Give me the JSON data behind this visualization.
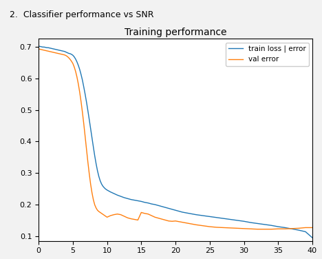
{
  "title": "Training performance",
  "page_header": "2.  Classifier performance vs SNR",
  "legend": [
    "train loss | error",
    "val error"
  ],
  "train_color": "#1f77b4",
  "val_color": "#ff7f0e",
  "xlim": [
    0,
    40
  ],
  "ylim": [
    0.085,
    0.725
  ],
  "yticks": [
    0.1,
    0.2,
    0.3,
    0.4,
    0.5,
    0.6,
    0.7
  ],
  "xticks": [
    0,
    5,
    10,
    15,
    20,
    25,
    30,
    35,
    40
  ],
  "page_bg": "#f0f0f0",
  "train_x": [
    0,
    0.2,
    0.4,
    0.6,
    0.8,
    1,
    1.2,
    1.4,
    1.6,
    1.8,
    2,
    2.2,
    2.4,
    2.6,
    2.8,
    3,
    3.2,
    3.4,
    3.6,
    3.8,
    4,
    4.2,
    4.4,
    4.6,
    4.8,
    5,
    5.2,
    5.4,
    5.6,
    5.8,
    6,
    6.2,
    6.4,
    6.6,
    6.8,
    7,
    7.2,
    7.4,
    7.6,
    7.8,
    8,
    8.2,
    8.4,
    8.6,
    8.8,
    9,
    9.2,
    9.4,
    9.6,
    9.8,
    10,
    10.5,
    11,
    11.5,
    12,
    12.5,
    13,
    13.5,
    14,
    14.5,
    15,
    15.5,
    16,
    16.5,
    17,
    17.5,
    18,
    18.5,
    19,
    19.5,
    20,
    21,
    22,
    23,
    24,
    25,
    26,
    27,
    28,
    29,
    30,
    31,
    32,
    33,
    34,
    35,
    36,
    37,
    38,
    39,
    40
  ],
  "train_y": [
    0.702,
    0.701,
    0.7,
    0.699,
    0.699,
    0.698,
    0.697,
    0.697,
    0.696,
    0.695,
    0.694,
    0.693,
    0.692,
    0.691,
    0.69,
    0.689,
    0.688,
    0.687,
    0.686,
    0.685,
    0.683,
    0.681,
    0.679,
    0.678,
    0.676,
    0.673,
    0.668,
    0.661,
    0.652,
    0.641,
    0.628,
    0.612,
    0.594,
    0.572,
    0.549,
    0.524,
    0.497,
    0.469,
    0.44,
    0.411,
    0.382,
    0.354,
    0.329,
    0.307,
    0.289,
    0.275,
    0.265,
    0.258,
    0.253,
    0.249,
    0.246,
    0.24,
    0.235,
    0.23,
    0.226,
    0.222,
    0.219,
    0.216,
    0.214,
    0.212,
    0.21,
    0.207,
    0.205,
    0.202,
    0.2,
    0.197,
    0.194,
    0.191,
    0.188,
    0.185,
    0.182,
    0.176,
    0.172,
    0.168,
    0.165,
    0.162,
    0.159,
    0.156,
    0.153,
    0.15,
    0.147,
    0.143,
    0.14,
    0.137,
    0.134,
    0.13,
    0.127,
    0.123,
    0.119,
    0.114,
    0.095
  ],
  "val_x": [
    0,
    0.2,
    0.4,
    0.6,
    0.8,
    1,
    1.2,
    1.4,
    1.6,
    1.8,
    2,
    2.2,
    2.4,
    2.6,
    2.8,
    3,
    3.2,
    3.4,
    3.6,
    3.8,
    4,
    4.2,
    4.4,
    4.6,
    4.8,
    5,
    5.2,
    5.4,
    5.6,
    5.8,
    6,
    6.2,
    6.4,
    6.6,
    6.8,
    7,
    7.2,
    7.4,
    7.6,
    7.8,
    8,
    8.2,
    8.4,
    8.6,
    8.8,
    9,
    9.2,
    9.4,
    9.6,
    9.8,
    10,
    10.5,
    11,
    11.5,
    12,
    12.5,
    13,
    13.5,
    14,
    14.5,
    15,
    15.5,
    16,
    16.5,
    17,
    17.5,
    18,
    18.5,
    19,
    19.5,
    20,
    21,
    22,
    23,
    24,
    25,
    26,
    27,
    28,
    29,
    30,
    31,
    32,
    33,
    34,
    35,
    36,
    37,
    38,
    39,
    40
  ],
  "val_y": [
    0.693,
    0.692,
    0.691,
    0.69,
    0.689,
    0.688,
    0.687,
    0.686,
    0.685,
    0.684,
    0.683,
    0.682,
    0.681,
    0.68,
    0.679,
    0.678,
    0.677,
    0.676,
    0.675,
    0.674,
    0.672,
    0.669,
    0.665,
    0.66,
    0.654,
    0.647,
    0.636,
    0.622,
    0.604,
    0.582,
    0.556,
    0.526,
    0.492,
    0.455,
    0.415,
    0.374,
    0.334,
    0.297,
    0.264,
    0.237,
    0.215,
    0.199,
    0.189,
    0.182,
    0.178,
    0.175,
    0.172,
    0.169,
    0.166,
    0.163,
    0.16,
    0.165,
    0.168,
    0.17,
    0.168,
    0.163,
    0.158,
    0.155,
    0.153,
    0.151,
    0.175,
    0.172,
    0.17,
    0.165,
    0.16,
    0.157,
    0.154,
    0.151,
    0.148,
    0.147,
    0.148,
    0.144,
    0.14,
    0.136,
    0.133,
    0.13,
    0.128,
    0.127,
    0.126,
    0.125,
    0.124,
    0.123,
    0.122,
    0.122,
    0.122,
    0.123,
    0.123,
    0.124,
    0.125,
    0.127,
    0.127
  ]
}
